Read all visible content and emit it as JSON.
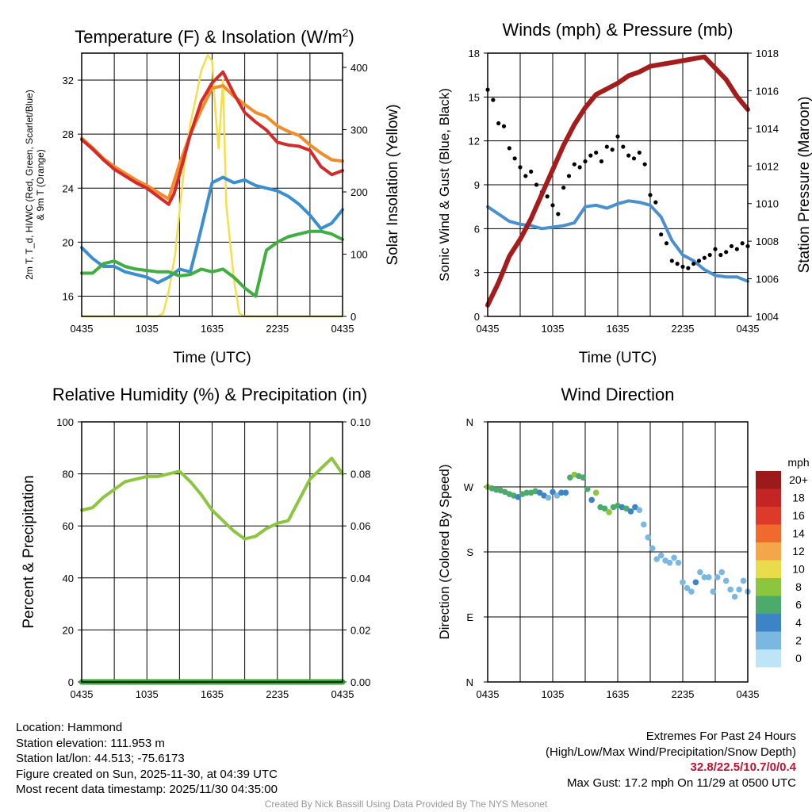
{
  "time_ticks": [
    "0435",
    "1035",
    "1635",
    "2235",
    "0435"
  ],
  "chart_data": [
    {
      "id": "temperature",
      "type": "line",
      "title": "Temperature (F) & Insolation (W/m",
      "title_sup": "2",
      "title_end": ")",
      "xlabel": "Time (UTC)",
      "ylabel_line1": "2m T, T_d, HI/WC (Red, Green, Scarlet/Blue)",
      "ylabel_line2": "& 9m T (Orange)",
      "ylabel_right": "Solar Insolation (Yellow)",
      "x_range_hours": [
        0,
        24
      ],
      "ylim_left": [
        14.5,
        34
      ],
      "yticks_left": [
        16,
        20,
        24,
        28,
        32
      ],
      "ylim_right": [
        0,
        423
      ],
      "yticks_right": [
        0,
        100,
        200,
        300,
        400
      ],
      "series": [
        {
          "name": "9m T",
          "color": "#f28c28",
          "axis": "left",
          "x": [
            0,
            1,
            2,
            3,
            4,
            5,
            6,
            7,
            8,
            9,
            10,
            11,
            12,
            13,
            14,
            15,
            16,
            17,
            18,
            19,
            20,
            21,
            22,
            23,
            24
          ],
          "y": [
            27.7,
            27.0,
            26.2,
            25.6,
            25.1,
            24.6,
            24.2,
            23.7,
            23.2,
            25.8,
            28.0,
            29.8,
            31.4,
            31.6,
            30.8,
            30.2,
            29.6,
            29.3,
            28.6,
            28.2,
            27.9,
            27.2,
            26.6,
            26.1,
            26.0
          ]
        },
        {
          "name": "2m T",
          "color": "#d42a2a",
          "axis": "left",
          "x": [
            0,
            1,
            2,
            3,
            4,
            5,
            6,
            7,
            8,
            8.5,
            9,
            10,
            11,
            12,
            13,
            14,
            15,
            16,
            17,
            18,
            19,
            20,
            21,
            22,
            23,
            24
          ],
          "y": [
            27.6,
            26.9,
            26.1,
            25.4,
            24.9,
            24.4,
            24.0,
            23.4,
            22.8,
            23.6,
            25.0,
            28.0,
            30.4,
            31.8,
            32.6,
            31.0,
            29.6,
            28.9,
            28.3,
            27.4,
            27.2,
            27.1,
            26.8,
            25.6,
            25.0,
            25.3
          ]
        },
        {
          "name": "HI/WC",
          "color": "#3a8fd0",
          "axis": "left",
          "x": [
            0,
            1,
            2,
            3,
            4,
            5,
            6,
            7,
            8,
            9,
            10,
            11,
            12,
            13,
            14,
            15,
            16,
            17,
            18,
            19,
            20,
            21,
            22,
            23,
            24
          ],
          "y": [
            19.6,
            18.8,
            18.2,
            18.2,
            17.8,
            17.6,
            17.4,
            17.0,
            17.4,
            18.0,
            17.8,
            21.0,
            24.4,
            24.8,
            24.4,
            24.6,
            24.2,
            24.0,
            23.8,
            23.4,
            22.8,
            22.0,
            21.0,
            21.4,
            22.4
          ]
        },
        {
          "name": "Dewpoint",
          "color": "#3faf3f",
          "axis": "left",
          "x": [
            0,
            1,
            2,
            3,
            4,
            5,
            6,
            7,
            8,
            9,
            10,
            11,
            12,
            13,
            14,
            15,
            16,
            17,
            18,
            19,
            20,
            21,
            22,
            23,
            24
          ],
          "y": [
            17.7,
            17.7,
            18.4,
            18.6,
            18.2,
            18.0,
            17.9,
            17.8,
            17.8,
            17.5,
            17.6,
            18.0,
            17.8,
            18.0,
            17.4,
            16.6,
            16.0,
            19.4,
            20.0,
            20.4,
            20.6,
            20.8,
            20.8,
            20.6,
            20.2
          ]
        },
        {
          "name": "Solar Insolation",
          "color": "#f3e04a",
          "axis": "right",
          "x": [
            0,
            7,
            7.5,
            8,
            8.6,
            9,
            9.5,
            10,
            10.5,
            11,
            11.6,
            12,
            12.3,
            12.6,
            13,
            13.3,
            14,
            14.5,
            15,
            16,
            24
          ],
          "y": [
            0,
            0,
            5,
            40,
            100,
            170,
            250,
            310,
            350,
            395,
            420,
            410,
            330,
            270,
            380,
            180,
            60,
            5,
            0,
            0,
            0
          ]
        }
      ]
    },
    {
      "id": "winds",
      "type": "line+scatter",
      "title": "Winds (mph) & Pressure (mb)",
      "xlabel": "Time (UTC)",
      "ylabel": "Sonic Wind & Gust (Blue, Black)",
      "ylabel_right": "Station Pressure (Maroon)",
      "x_range_hours": [
        0,
        24
      ],
      "ylim_left": [
        0,
        18
      ],
      "yticks_left": [
        0,
        3,
        6,
        9,
        12,
        15,
        18
      ],
      "ylim_right": [
        1004,
        1018
      ],
      "yticks_right": [
        1004,
        1006,
        1008,
        1010,
        1012,
        1014,
        1016,
        1018
      ],
      "series": [
        {
          "name": "Station Pressure",
          "color": "#a51c1c",
          "axis": "right",
          "x": [
            0,
            1,
            2,
            3,
            4,
            5,
            6,
            7,
            8,
            9,
            10,
            11,
            12,
            13,
            14,
            15,
            16,
            17,
            18,
            19,
            20,
            21,
            22,
            23,
            24
          ],
          "y": [
            1004.6,
            1005.8,
            1007.2,
            1008.1,
            1009.2,
            1010.5,
            1011.8,
            1013.1,
            1014.2,
            1015.1,
            1015.8,
            1016.1,
            1016.4,
            1016.8,
            1017.0,
            1017.3,
            1017.4,
            1017.5,
            1017.6,
            1017.7,
            1017.8,
            1017.2,
            1016.6,
            1015.7,
            1015.0
          ]
        },
        {
          "name": "Sonic Wind",
          "color": "#4a90d0",
          "axis": "left",
          "x": [
            0,
            1,
            2,
            3,
            4,
            5,
            6,
            7,
            8,
            9,
            10,
            11,
            12,
            13,
            14,
            15,
            16,
            17,
            18,
            19,
            20,
            21,
            22,
            23,
            24
          ],
          "y": [
            7.5,
            7.0,
            6.5,
            6.3,
            6.2,
            6.0,
            6.1,
            6.2,
            6.4,
            7.5,
            7.6,
            7.4,
            7.7,
            7.9,
            7.8,
            7.6,
            6.8,
            5.2,
            4.2,
            3.8,
            3.2,
            2.8,
            2.7,
            2.7,
            2.4
          ]
        },
        {
          "name": "Gust",
          "color": "#000000",
          "axis": "left",
          "style": "scatter",
          "x": [
            0,
            0.5,
            1,
            1.5,
            2,
            2.5,
            3,
            3.5,
            4,
            4.5,
            5,
            5.5,
            6,
            6.5,
            7,
            7.5,
            8,
            8.5,
            9,
            9.5,
            10,
            10.5,
            11,
            11.5,
            12,
            12.5,
            13,
            13.5,
            14,
            14.5,
            15,
            15.5,
            16,
            16.5,
            17,
            17.5,
            18,
            18.5,
            19,
            19.5,
            20,
            20.5,
            21,
            21.5,
            22,
            22.5,
            23,
            23.5,
            24
          ],
          "y": [
            15.5,
            14.8,
            13.2,
            13.0,
            11.5,
            10.8,
            10.2,
            9.6,
            9.9,
            9.0,
            8.5,
            8.2,
            7.6,
            7.0,
            8.8,
            9.6,
            10.4,
            10.2,
            10.6,
            11.0,
            11.2,
            10.6,
            11.6,
            11.4,
            12.3,
            11.6,
            11.0,
            10.8,
            11.2,
            10.4,
            8.3,
            7.8,
            5.6,
            5.0,
            3.8,
            3.6,
            3.4,
            3.3,
            3.6,
            3.8,
            4.0,
            4.2,
            4.6,
            4.2,
            4.4,
            4.8,
            4.6,
            5.0,
            4.8
          ]
        }
      ]
    },
    {
      "id": "humidity",
      "type": "line",
      "title": "Relative Humidity (%) & Precipitation (in)",
      "xlabel": "",
      "ylabel": "Percent & Precipitation",
      "x_range_hours": [
        0,
        24
      ],
      "ylim_left": [
        0,
        100
      ],
      "yticks_left": [
        0,
        20,
        40,
        60,
        80,
        100
      ],
      "ylim_right": [
        0,
        0.1
      ],
      "yticks_right": [
        "0.00",
        "0.02",
        "0.04",
        "0.06",
        "0.08",
        "0.10"
      ],
      "series": [
        {
          "name": "Relative Humidity",
          "color": "#8cc63f",
          "axis": "left",
          "x": [
            0,
            1,
            2,
            3,
            4,
            5,
            6,
            7,
            8,
            9,
            10,
            11,
            12,
            13,
            14,
            15,
            16,
            17,
            18,
            19,
            20,
            21,
            22,
            23,
            24
          ],
          "y": [
            66,
            67,
            71,
            74,
            77,
            78,
            79,
            79,
            80,
            81,
            77,
            72,
            66,
            62,
            58,
            55,
            56,
            59,
            61,
            62,
            70,
            78,
            82,
            86,
            80
          ]
        },
        {
          "name": "Precipitation",
          "color": "#3aa63a",
          "axis": "right",
          "x": [
            0,
            24
          ],
          "y": [
            0,
            0
          ]
        }
      ]
    },
    {
      "id": "direction",
      "type": "scatter",
      "title": "Wind Direction",
      "xlabel": "",
      "ylabel": "Direction (Colored By Speed)",
      "x_range_hours": [
        0,
        24
      ],
      "yticks_labels": [
        "N",
        "E",
        "S",
        "W",
        "N"
      ],
      "ylim_deg": [
        0,
        360
      ],
      "series": [
        {
          "name": "Direction",
          "x": [
            0,
            0.4,
            0.8,
            1.2,
            1.6,
            2.0,
            2.4,
            2.8,
            3.2,
            3.6,
            4.0,
            4.4,
            4.8,
            5.2,
            5.6,
            6.0,
            6.4,
            6.8,
            7.2,
            7.6,
            8.0,
            8.4,
            8.8,
            9.2,
            9.6,
            10.0,
            10.4,
            10.8,
            11.2,
            11.6,
            12.0,
            12.4,
            12.8,
            13.2,
            13.6,
            14.0,
            14.4,
            14.8,
            15.2,
            15.6,
            16.0,
            16.4,
            16.8,
            17.2,
            17.6,
            18.0,
            18.4,
            18.8,
            19.2,
            19.6,
            20.0,
            20.4,
            20.8,
            21.2,
            21.6,
            22.0,
            22.4,
            22.8,
            23.2,
            23.6,
            24.0
          ],
          "y": [
            270,
            268,
            266,
            265,
            263,
            260,
            258,
            256,
            260,
            262,
            262,
            264,
            262,
            258,
            255,
            263,
            258,
            262,
            262,
            283,
            287,
            285,
            283,
            267,
            252,
            262,
            242,
            240,
            235,
            242,
            244,
            242,
            240,
            236,
            242,
            238,
            218,
            200,
            185,
            170,
            175,
            168,
            165,
            172,
            165,
            138,
            130,
            125,
            138,
            152,
            145,
            145,
            125,
            145,
            152,
            140,
            128,
            118,
            128,
            140,
            125
          ],
          "speed": [
            9,
            7,
            6,
            7,
            6,
            6,
            6,
            5,
            6,
            6,
            6,
            6,
            5,
            4,
            3,
            4,
            3,
            4,
            5,
            6,
            8,
            7,
            7,
            6,
            5,
            8,
            7,
            7,
            9,
            6,
            6,
            5,
            6,
            5,
            4,
            3,
            3,
            2,
            2,
            2,
            3,
            2,
            2,
            2,
            3,
            2,
            2,
            3,
            4,
            2,
            3,
            2,
            2,
            2,
            2,
            3,
            2,
            2,
            2,
            2,
            3
          ]
        }
      ],
      "colorbar": {
        "title": "mph",
        "labels": [
          "20+",
          "18",
          "16",
          "14",
          "12",
          "10",
          "8",
          "6",
          "4",
          "2",
          "0"
        ],
        "colors": [
          "#9c1a1a",
          "#c42424",
          "#dd3a2a",
          "#ef6a2c",
          "#f6a64a",
          "#e8dc4c",
          "#8cc63f",
          "#4caa6a",
          "#3d84c6",
          "#7ab8e2",
          "#bde4f7"
        ]
      }
    }
  ],
  "footer": {
    "location": "Location: Hammond",
    "elevation": "Station elevation: 111.953 m",
    "latlon": "Station lat/lon: 44.513; -75.6173",
    "created": "Figure created on Sun, 2025-11-30, at 04:39 UTC",
    "recent": "Most recent data timestamp: 2025/11/30 04:35:00",
    "extremes_title": "Extremes For Past 24 Hours",
    "extremes_legend": "(High/Low/Max Wind/Precipitation/Snow Depth)",
    "extremes_values": "32.8/22.5/10.7/0/0.4",
    "max_gust": "Max Gust: 17.2 mph On 11/29 at 0500 UTC",
    "credit": "Created By Nick Bassill Using Data Provided By The NYS Mesonet"
  }
}
